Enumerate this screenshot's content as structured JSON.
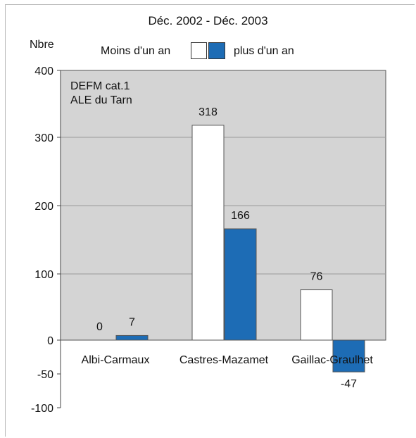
{
  "chart_data": {
    "type": "bar",
    "title": "Déc. 2002 - Déc. 2003",
    "ylabel": "Nbre",
    "xlabel": "",
    "categories": [
      "Albi-Carmaux",
      "Castres-Mazamet",
      "Gaillac-Graulhet"
    ],
    "series": [
      {
        "name": "Moins d'un an",
        "values": [
          0,
          318,
          76
        ],
        "color": "#ffffff"
      },
      {
        "name": "plus d'un an",
        "values": [
          7,
          166,
          -47
        ],
        "color": "#1d6cb5"
      }
    ],
    "ylim": [
      -100,
      400
    ],
    "yticks": [
      -100,
      -50,
      0,
      100,
      200,
      300,
      400
    ],
    "annotations": [
      "DEFM cat.1",
      "ALE du Tarn"
    ],
    "plot_background": "#d4d4d4",
    "grid": true,
    "legend_position": "top"
  }
}
